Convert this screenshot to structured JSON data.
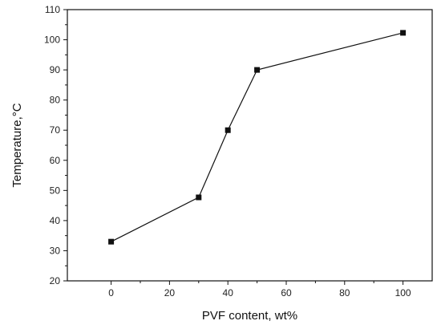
{
  "chart_data": {
    "type": "line",
    "title": "",
    "xlabel": "PVF content, wt%",
    "ylabel": "Temperature,",
    "ylabel_unit": "°C",
    "xlim": [
      -15,
      110
    ],
    "ylim": [
      20,
      110
    ],
    "xticks": [
      0,
      20,
      40,
      60,
      80,
      100
    ],
    "yticks": [
      20,
      30,
      40,
      50,
      60,
      70,
      80,
      90,
      100,
      110
    ],
    "grid": false,
    "legend": "none",
    "marker": "square",
    "line_color": "#111111",
    "series": [
      {
        "x": [
          0,
          30,
          40,
          50,
          100
        ],
        "y": [
          33,
          47.7,
          70,
          90,
          102.3
        ]
      }
    ]
  }
}
